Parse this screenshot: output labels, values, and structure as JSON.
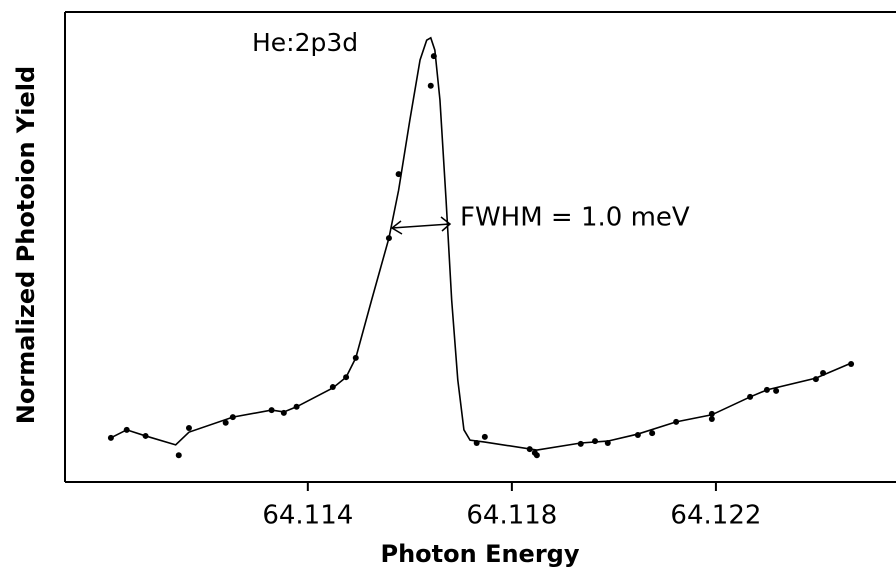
{
  "chart_data": {
    "type": "scatter",
    "xlabel": "Photon Energy",
    "ylabel": "Normalized Photoion Yield",
    "xlim": [
      64.10924,
      64.12553
    ],
    "ylim": [
      0,
      1
    ],
    "xticks": [
      64.114,
      64.118,
      64.122
    ],
    "grid": false,
    "annotations": [
      "He:2p3d",
      "FWHM = 1.0 meV"
    ],
    "series": [
      {
        "color": "#000000",
        "marker": "dot",
        "x": [
          64.11014,
          64.11045,
          64.11082,
          64.11147,
          64.11167,
          64.11239,
          64.11253,
          64.11329,
          64.11353,
          64.11378,
          64.11449,
          64.11475,
          64.11494,
          64.11559,
          64.11578,
          64.11641,
          64.11647,
          64.11731,
          64.11747,
          64.11835,
          64.11845,
          64.11849,
          64.11935,
          64.11963,
          64.11988,
          64.12047,
          64.12075,
          64.12122,
          64.12192,
          64.12192,
          64.12267,
          64.123,
          64.12318,
          64.12396,
          64.1241,
          64.12465
        ],
        "values": [
          0.094,
          0.111,
          0.098,
          0.057,
          0.115,
          0.126,
          0.138,
          0.153,
          0.147,
          0.16,
          0.202,
          0.223,
          0.264,
          0.519,
          0.655,
          0.843,
          0.906,
          0.083,
          0.096,
          0.07,
          0.062,
          0.057,
          0.081,
          0.087,
          0.083,
          0.1,
          0.104,
          0.128,
          0.134,
          0.145,
          0.181,
          0.196,
          0.194,
          0.219,
          0.232,
          0.251
        ]
      },
      {
        "color": "#000000",
        "marker": "line",
        "x": [
          64.11014,
          64.11045,
          64.11082,
          64.11141,
          64.11167,
          64.11253,
          64.11329,
          64.11353,
          64.11378,
          64.11449,
          64.11475,
          64.11494,
          64.11525,
          64.11559,
          64.11578,
          64.116,
          64.1162,
          64.11633,
          64.11641,
          64.11649,
          64.11659,
          64.11671,
          64.11682,
          64.11694,
          64.11706,
          64.11718,
          64.11747,
          64.11849,
          64.11935,
          64.11988,
          64.12047,
          64.12122,
          64.12192,
          64.12267,
          64.123,
          64.12396,
          64.12465
        ],
        "values": [
          0.094,
          0.111,
          0.098,
          0.079,
          0.106,
          0.138,
          0.153,
          0.149,
          0.16,
          0.2,
          0.223,
          0.264,
          0.387,
          0.519,
          0.621,
          0.77,
          0.898,
          0.94,
          0.945,
          0.919,
          0.813,
          0.6,
          0.387,
          0.217,
          0.111,
          0.089,
          0.085,
          0.068,
          0.083,
          0.087,
          0.102,
          0.128,
          0.143,
          0.181,
          0.196,
          0.221,
          0.253
        ]
      }
    ]
  }
}
